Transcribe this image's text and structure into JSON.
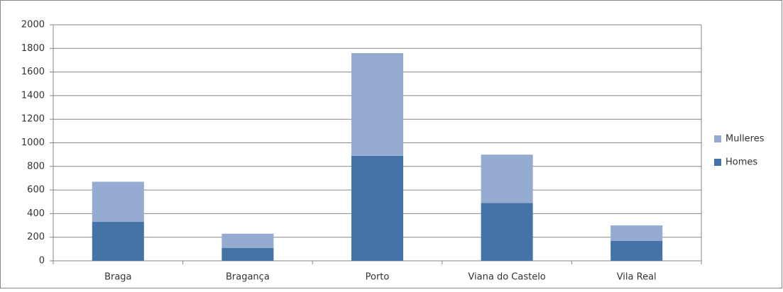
{
  "chart_data": {
    "type": "stacked_bar",
    "categories": [
      "Braga",
      "Bragança",
      "Porto",
      "Viana do Castelo",
      "Vila Real"
    ],
    "series": [
      {
        "name": "Homes",
        "color": "#4573a7",
        "values": [
          330,
          110,
          890,
          490,
          170
        ]
      },
      {
        "name": "Mulleres",
        "color": "#96abd2",
        "values": [
          340,
          120,
          870,
          410,
          130
        ]
      }
    ],
    "ylim": [
      0,
      2000
    ],
    "yticks": [
      0,
      200,
      400,
      600,
      800,
      1000,
      1200,
      1400,
      1600,
      1800,
      2000
    ],
    "grid": true,
    "legend": "right"
  }
}
